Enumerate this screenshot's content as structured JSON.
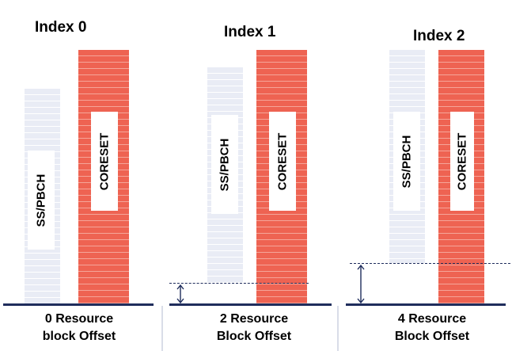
{
  "panels": [
    {
      "title": "Index 0",
      "ss_label": "SS/PBCH",
      "coreset_label": "CORESET",
      "caption_line1": "0 Resource",
      "caption_line2": "block Offset",
      "offset_rb": 0
    },
    {
      "title": "Index 1",
      "ss_label": "SS/PBCH",
      "coreset_label": "CORESET",
      "caption_line1": "2 Resource",
      "caption_line2": "Block Offset",
      "offset_rb": 2
    },
    {
      "title": "Index 2",
      "ss_label": "SS/PBCH",
      "coreset_label": "CORESET",
      "caption_line1": "4 Resource",
      "caption_line2": "Block Offset",
      "offset_rb": 4
    }
  ],
  "colors": {
    "coreset": "#ee6352",
    "ss_pbch": "#e9ecf5",
    "baseline": "#1f2d5c"
  }
}
